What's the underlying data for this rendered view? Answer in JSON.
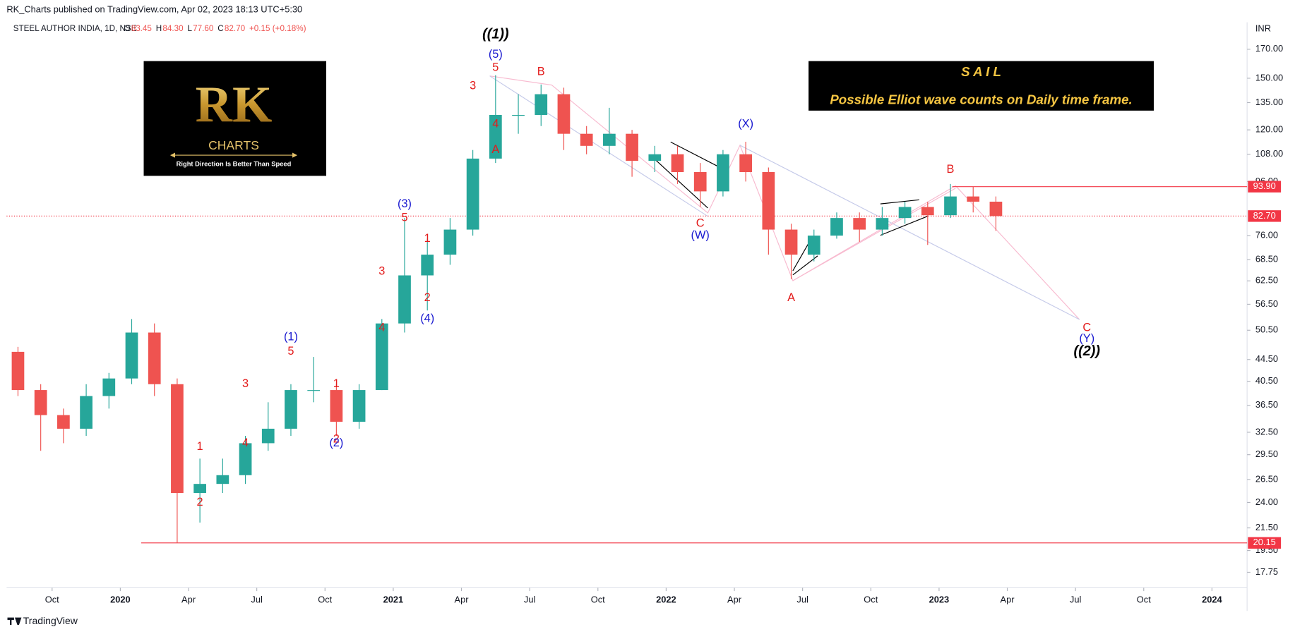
{
  "chart_data": {
    "type": "candlestick",
    "header": "RK_Charts published on TradingView.com, Apr 02, 2023 18:13 UTC+5:30",
    "symbol": "STEEL AUTHOR INDIA, 1D, NSE",
    "ohlc_legend": [
      [
        "O",
        "83.45"
      ],
      [
        "H",
        "84.30"
      ],
      [
        "L",
        "77.60"
      ],
      [
        "C",
        "82.70"
      ]
    ],
    "change": "+0.15 (+0.18%)",
    "currency": "INR",
    "footer": "TradingView",
    "logo": {
      "mark": "RK",
      "name": "CHARTS",
      "tagline": "Right Direction Is Better Than Speed"
    },
    "info_box": {
      "title": "S A I L",
      "text": "Possible Elliot wave counts on Daily time frame."
    },
    "log_scale": true,
    "up_color": "#26a69a",
    "down_color": "#ef5350",
    "xlim": [
      "2019-08",
      "2024-02"
    ],
    "xticks": [
      {
        "value": "2019-10",
        "label": "Oct"
      },
      {
        "value": "2020-01",
        "label": "2020"
      },
      {
        "value": "2020-04",
        "label": "Apr"
      },
      {
        "value": "2020-07",
        "label": "Jul"
      },
      {
        "value": "2020-10",
        "label": "Oct"
      },
      {
        "value": "2021-01",
        "label": "2021"
      },
      {
        "value": "2021-04",
        "label": "Apr"
      },
      {
        "value": "2021-07",
        "label": "Jul"
      },
      {
        "value": "2021-10",
        "label": "Oct"
      },
      {
        "value": "2022-01",
        "label": "2022"
      },
      {
        "value": "2022-04",
        "label": "Apr"
      },
      {
        "value": "2022-07",
        "label": "Jul"
      },
      {
        "value": "2022-10",
        "label": "Oct"
      },
      {
        "value": "2023-01",
        "label": "2023"
      },
      {
        "value": "2023-04",
        "label": "Apr"
      },
      {
        "value": "2023-07",
        "label": "Jul"
      },
      {
        "value": "2023-10",
        "label": "Oct"
      },
      {
        "value": "2024-01",
        "label": "2024"
      }
    ],
    "ylim": [
      16.6,
      191
    ],
    "yticks": [
      {
        "value": 170,
        "label": "170.00"
      },
      {
        "value": 150,
        "label": "150.00"
      },
      {
        "value": 135,
        "label": "135.00"
      },
      {
        "value": 120,
        "label": "120.00"
      },
      {
        "value": 108,
        "label": "108.00"
      },
      {
        "value": 96,
        "label": "96.00"
      },
      {
        "value": 76,
        "label": "76.00"
      },
      {
        "value": 68.5,
        "label": "68.50"
      },
      {
        "value": 62.5,
        "label": "62.50"
      },
      {
        "value": 56.5,
        "label": "56.50"
      },
      {
        "value": 50.5,
        "label": "50.50"
      },
      {
        "value": 44.5,
        "label": "44.50"
      },
      {
        "value": 40.5,
        "label": "40.50"
      },
      {
        "value": 36.5,
        "label": "36.50"
      },
      {
        "value": 32.5,
        "label": "32.50"
      },
      {
        "value": 29.5,
        "label": "29.50"
      },
      {
        "value": 26.5,
        "label": "26.50"
      },
      {
        "value": 24,
        "label": "24.00"
      },
      {
        "value": 21.5,
        "label": "21.50"
      },
      {
        "value": 19.5,
        "label": "19.50"
      },
      {
        "value": 17.75,
        "label": "17.75"
      }
    ],
    "x": [
      "2019-08",
      "2019-09",
      "2019-10",
      "2019-11",
      "2019-12",
      "2020-01",
      "2020-02",
      "2020-03",
      "2020-04",
      "2020-05",
      "2020-06",
      "2020-07",
      "2020-08",
      "2020-09",
      "2020-10",
      "2020-11",
      "2020-12",
      "2021-01",
      "2021-02",
      "2021-03",
      "2021-04",
      "2021-05",
      "2021-06",
      "2021-07",
      "2021-08",
      "2021-09",
      "2021-10",
      "2021-11",
      "2021-12",
      "2022-01",
      "2022-02",
      "2022-03",
      "2022-04",
      "2022-05",
      "2022-06",
      "2022-07",
      "2022-08",
      "2022-09",
      "2022-10",
      "2022-11",
      "2022-12",
      "2023-01",
      "2023-02",
      "2023-03"
    ],
    "ohlc": [
      [
        46,
        47,
        38,
        39
      ],
      [
        39,
        40,
        30,
        35
      ],
      [
        35,
        36,
        31,
        33
      ],
      [
        33,
        40,
        32,
        38
      ],
      [
        38,
        42,
        36,
        41
      ],
      [
        41,
        53,
        40,
        50
      ],
      [
        50,
        52,
        38,
        40
      ],
      [
        40,
        41,
        20.15,
        25
      ],
      [
        25,
        29,
        22,
        26
      ],
      [
        26,
        29,
        25,
        27
      ],
      [
        27,
        32,
        26,
        31
      ],
      [
        31,
        37,
        30,
        33
      ],
      [
        33,
        40,
        32,
        39
      ],
      [
        39,
        45,
        37,
        39
      ],
      [
        39,
        40,
        32,
        34
      ],
      [
        34,
        40,
        33,
        39
      ],
      [
        39,
        53,
        39,
        52
      ],
      [
        52,
        82,
        50,
        64
      ],
      [
        64,
        75,
        55,
        70
      ],
      [
        70,
        82,
        67,
        78
      ],
      [
        78,
        110,
        76,
        106
      ],
      [
        106,
        152,
        104,
        128
      ],
      [
        128,
        140,
        118,
        128
      ],
      [
        128,
        146,
        122,
        140
      ],
      [
        140,
        144,
        110,
        118
      ],
      [
        118,
        122,
        108,
        112
      ],
      [
        112,
        132,
        108,
        118
      ],
      [
        118,
        120,
        98,
        105
      ],
      [
        105,
        112,
        100,
        108
      ],
      [
        108,
        112,
        95,
        100
      ],
      [
        100,
        104,
        86,
        92
      ],
      [
        92,
        110,
        90,
        108
      ],
      [
        108,
        114,
        96,
        100
      ],
      [
        100,
        102,
        70,
        78
      ],
      [
        78,
        80,
        63,
        70
      ],
      [
        70,
        78,
        68,
        76
      ],
      [
        76,
        84,
        75,
        82
      ],
      [
        82,
        84,
        74,
        78
      ],
      [
        78,
        86,
        76,
        82
      ],
      [
        82,
        88,
        80,
        86
      ],
      [
        86,
        88,
        73,
        83
      ],
      [
        83,
        95,
        82,
        90
      ],
      [
        90,
        94,
        84,
        88
      ],
      [
        88,
        90,
        77.6,
        82.7
      ]
    ],
    "price_lines": [
      {
        "value": 93.9,
        "label": "93.90",
        "color": "#f23645",
        "style": "solid"
      },
      {
        "value": 82.7,
        "label": "82.70",
        "color": "#f23645",
        "style": "dotted"
      },
      {
        "value": 20.15,
        "label": "20.15",
        "color": "#f23645",
        "style": "solid"
      }
    ],
    "annotations": [
      {
        "text": "((1))",
        "x": "2021-05",
        "y": 181,
        "color": "#000000"
      },
      {
        "text": "(5)",
        "x": "2021-05",
        "y": 166,
        "color": "#1a1ad0"
      },
      {
        "text": "5",
        "x": "2021-05",
        "y": 157,
        "color": "#e31b1b"
      },
      {
        "text": "3",
        "x": "2021-04",
        "y": 145,
        "color": "#e31b1b"
      },
      {
        "text": "4",
        "x": "2021-05",
        "y": 123,
        "color": "#e31b1b"
      },
      {
        "text": "A",
        "x": "2021-05",
        "y": 110,
        "color": "#e31b1b"
      },
      {
        "text": "B",
        "x": "2021-07",
        "y": 154,
        "color": "#e31b1b"
      },
      {
        "text": "(X)",
        "x": "2022-04",
        "y": 123,
        "color": "#1a1ad0"
      },
      {
        "text": "C",
        "x": "2022-02",
        "y": 80,
        "color": "#e31b1b"
      },
      {
        "text": "(W)",
        "x": "2022-02",
        "y": 76,
        "color": "#1a1ad0"
      },
      {
        "text": "A",
        "x": "2022-06",
        "y": 58,
        "color": "#e31b1b"
      },
      {
        "text": "B",
        "x": "2023-01",
        "y": 101,
        "color": "#e31b1b"
      },
      {
        "text": "C",
        "x": "2023-07",
        "y": 51,
        "color": "#e31b1b"
      },
      {
        "text": "(Y)",
        "x": "2023-07",
        "y": 48.6,
        "color": "#1a1ad0"
      },
      {
        "text": "((2))",
        "x": "2023-07",
        "y": 46,
        "color": "#000000"
      },
      {
        "text": "(3)",
        "x": "2021-01",
        "y": 87,
        "color": "#1a1ad0"
      },
      {
        "text": "5",
        "x": "2021-01",
        "y": 82,
        "color": "#e31b1b"
      },
      {
        "text": "1",
        "x": "2021-02",
        "y": 75,
        "color": "#e31b1b"
      },
      {
        "text": "3",
        "x": "2020-12",
        "y": 65,
        "color": "#e31b1b"
      },
      {
        "text": "2",
        "x": "2021-02",
        "y": 58,
        "color": "#e31b1b"
      },
      {
        "text": "4",
        "x": "2020-12",
        "y": 51,
        "color": "#e31b1b"
      },
      {
        "text": "(4)",
        "x": "2021-02",
        "y": 53,
        "color": "#1a1ad0"
      },
      {
        "text": "(1)",
        "x": "2020-08",
        "y": 49,
        "color": "#1a1ad0"
      },
      {
        "text": "5",
        "x": "2020-08",
        "y": 46,
        "color": "#e31b1b"
      },
      {
        "text": "3",
        "x": "2020-06",
        "y": 40,
        "color": "#e31b1b"
      },
      {
        "text": "4",
        "x": "2020-06",
        "y": 31,
        "color": "#e31b1b"
      },
      {
        "text": "1",
        "x": "2020-10",
        "y": 40,
        "color": "#e31b1b"
      },
      {
        "text": "2",
        "x": "2020-10",
        "y": 31.5,
        "color": "#e31b1b"
      },
      {
        "text": "(2)",
        "x": "2020-10",
        "y": 31,
        "color": "#1a1ad0"
      },
      {
        "text": "1",
        "x": "2020-04",
        "y": 30.5,
        "color": "#e31b1b"
      },
      {
        "text": "2",
        "x": "2020-04",
        "y": 24,
        "color": "#e31b1b"
      }
    ]
  }
}
